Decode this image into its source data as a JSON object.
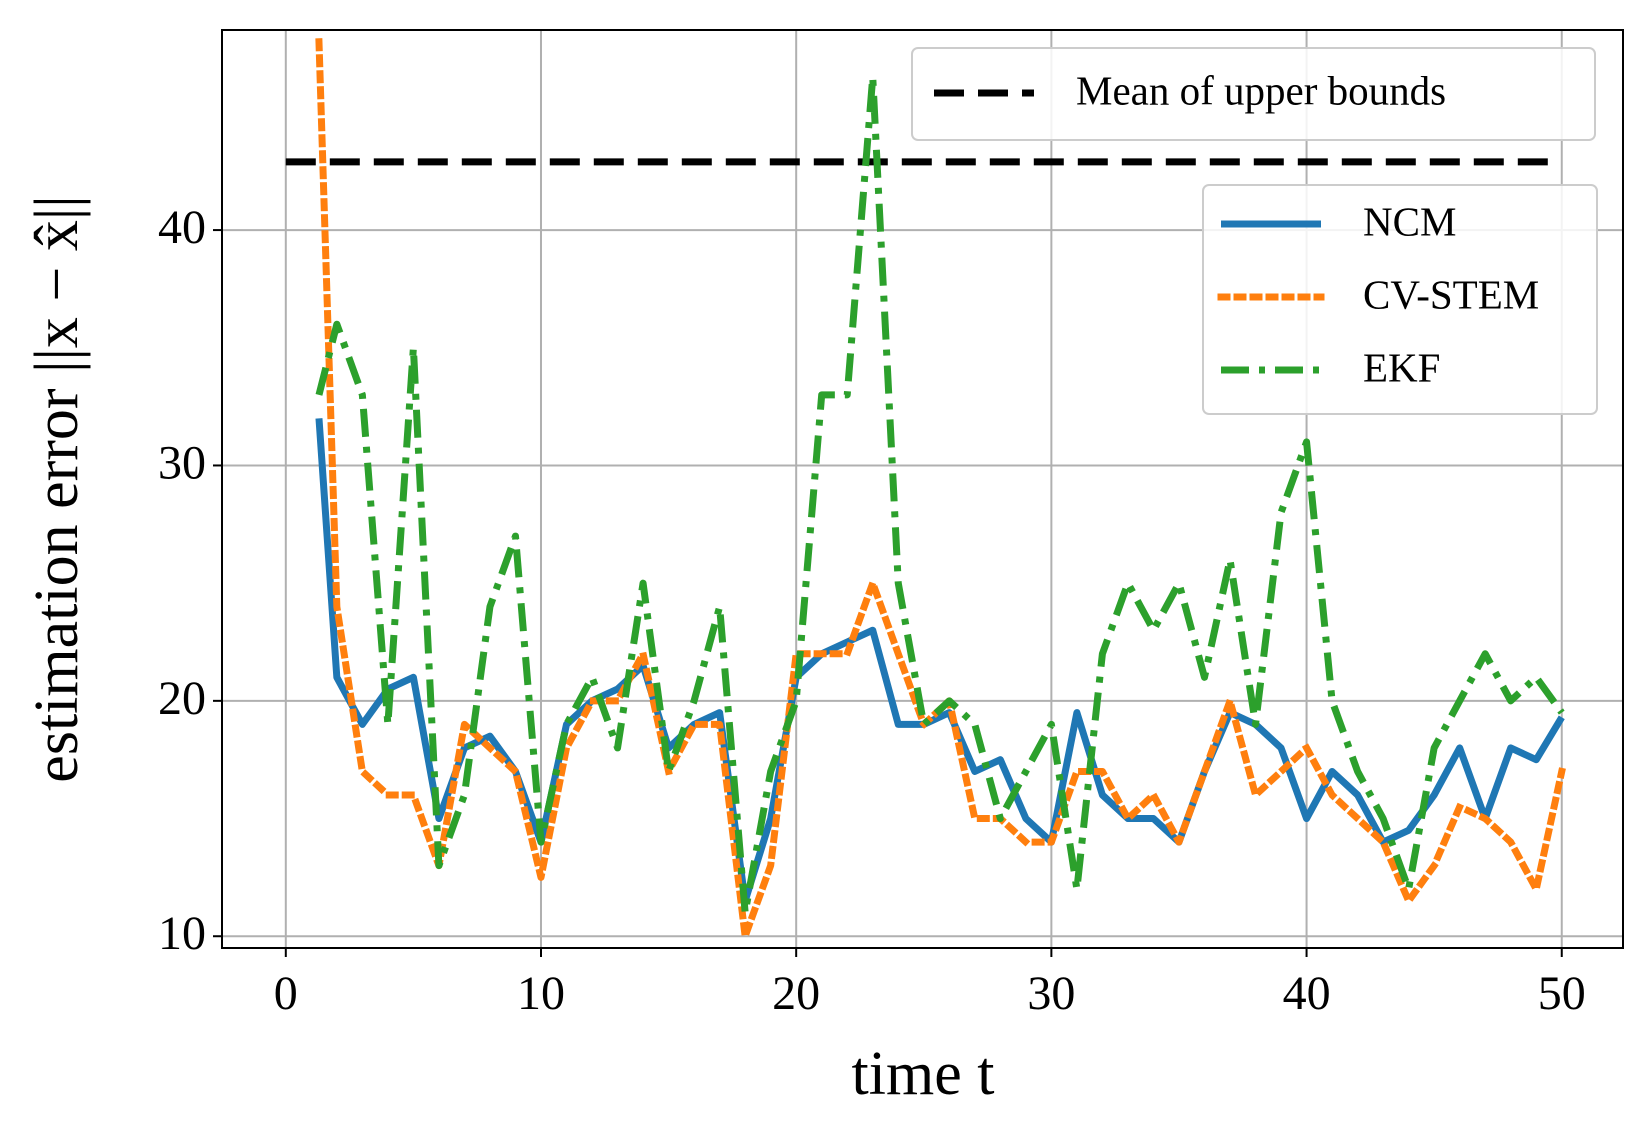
{
  "chart_data": {
    "type": "line",
    "xlabel": "time t",
    "ylabel": "estimation error ||x − x̂||",
    "xlim": [
      -2.5,
      52.4
    ],
    "ylim": [
      9.5,
      48.5
    ],
    "xticks": [
      0,
      10,
      20,
      30,
      40,
      50
    ],
    "yticks": [
      10,
      20,
      30,
      40
    ],
    "grid": true,
    "legend_loc": "upper right",
    "series": [
      {
        "name": "Mean of upper bounds",
        "color": "#000000",
        "linestyle": "dashed",
        "x": [
          0,
          49.5
        ],
        "values": [
          42.9,
          42.9
        ]
      },
      {
        "name": "NCM",
        "color": "#1f77b4",
        "linestyle": "solid",
        "x": [
          1.3,
          2,
          3,
          4,
          5,
          6,
          7,
          8,
          9,
          10,
          11,
          12,
          13,
          14,
          15,
          16,
          17,
          18,
          19,
          20,
          21,
          22,
          23,
          24,
          25,
          26,
          27,
          28,
          29,
          30,
          31,
          32,
          33,
          34,
          35,
          36,
          37,
          38,
          39,
          40,
          41,
          42,
          43,
          44,
          45,
          46,
          47,
          48,
          49,
          50
        ],
        "values": [
          32,
          21,
          19,
          20.5,
          21,
          15,
          18,
          18.5,
          17,
          14,
          19,
          20,
          20.5,
          21.5,
          18,
          19,
          19.5,
          11.5,
          15,
          21,
          22,
          22.5,
          23,
          19,
          19,
          19.5,
          17,
          17.5,
          15,
          14,
          19.5,
          16,
          15,
          15,
          14,
          17,
          19.5,
          19,
          18,
          15,
          17,
          16,
          14,
          14.5,
          16,
          18,
          15,
          18,
          17.5,
          19.3
        ]
      },
      {
        "name": "CV-STEM",
        "color": "#ff7f0e",
        "linestyle": "dotted",
        "x": [
          1.3,
          2,
          3,
          4,
          5,
          6,
          7,
          8,
          9,
          10,
          11,
          12,
          13,
          14,
          15,
          16,
          17,
          18,
          19,
          20,
          21,
          22,
          23,
          24,
          25,
          26,
          27,
          28,
          29,
          30,
          31,
          32,
          33,
          34,
          35,
          36,
          37,
          38,
          39,
          40,
          41,
          42,
          43,
          44,
          45,
          46,
          47,
          48,
          49,
          50
        ],
        "values": [
          48,
          24,
          17,
          16,
          16,
          13,
          19,
          18,
          17,
          12.5,
          18,
          20,
          20,
          22,
          17,
          19,
          19,
          10,
          13,
          22,
          22,
          22,
          25,
          22,
          19,
          20,
          15,
          15,
          14,
          14,
          17,
          17,
          15,
          16,
          14,
          17,
          20,
          16,
          17,
          18,
          16,
          15,
          14,
          11.5,
          13,
          15.5,
          15,
          14,
          12,
          17
        ]
      },
      {
        "name": "EKF",
        "color": "#2ca02c",
        "linestyle": "dashdot",
        "x": [
          1.3,
          2,
          3,
          4,
          5,
          6,
          7,
          8,
          9,
          10,
          11,
          12,
          13,
          14,
          15,
          16,
          17,
          18,
          19,
          20,
          21,
          22,
          23,
          24,
          25,
          26,
          27,
          28,
          29,
          30,
          31,
          32,
          33,
          34,
          35,
          36,
          37,
          38,
          39,
          40,
          41,
          42,
          43,
          44,
          45,
          46,
          47,
          48,
          49,
          50
        ],
        "values": [
          33,
          36,
          33,
          19,
          35,
          13,
          16,
          24,
          27,
          14,
          19,
          21,
          18,
          25,
          17,
          20,
          24,
          11,
          17,
          20,
          33,
          33,
          46.5,
          25,
          19,
          20,
          19,
          15,
          17,
          19,
          12,
          22,
          25,
          23,
          25,
          21,
          26,
          19,
          28,
          31,
          20,
          17,
          15,
          12,
          18,
          20,
          22,
          20,
          21,
          19.5
        ]
      }
    ]
  }
}
